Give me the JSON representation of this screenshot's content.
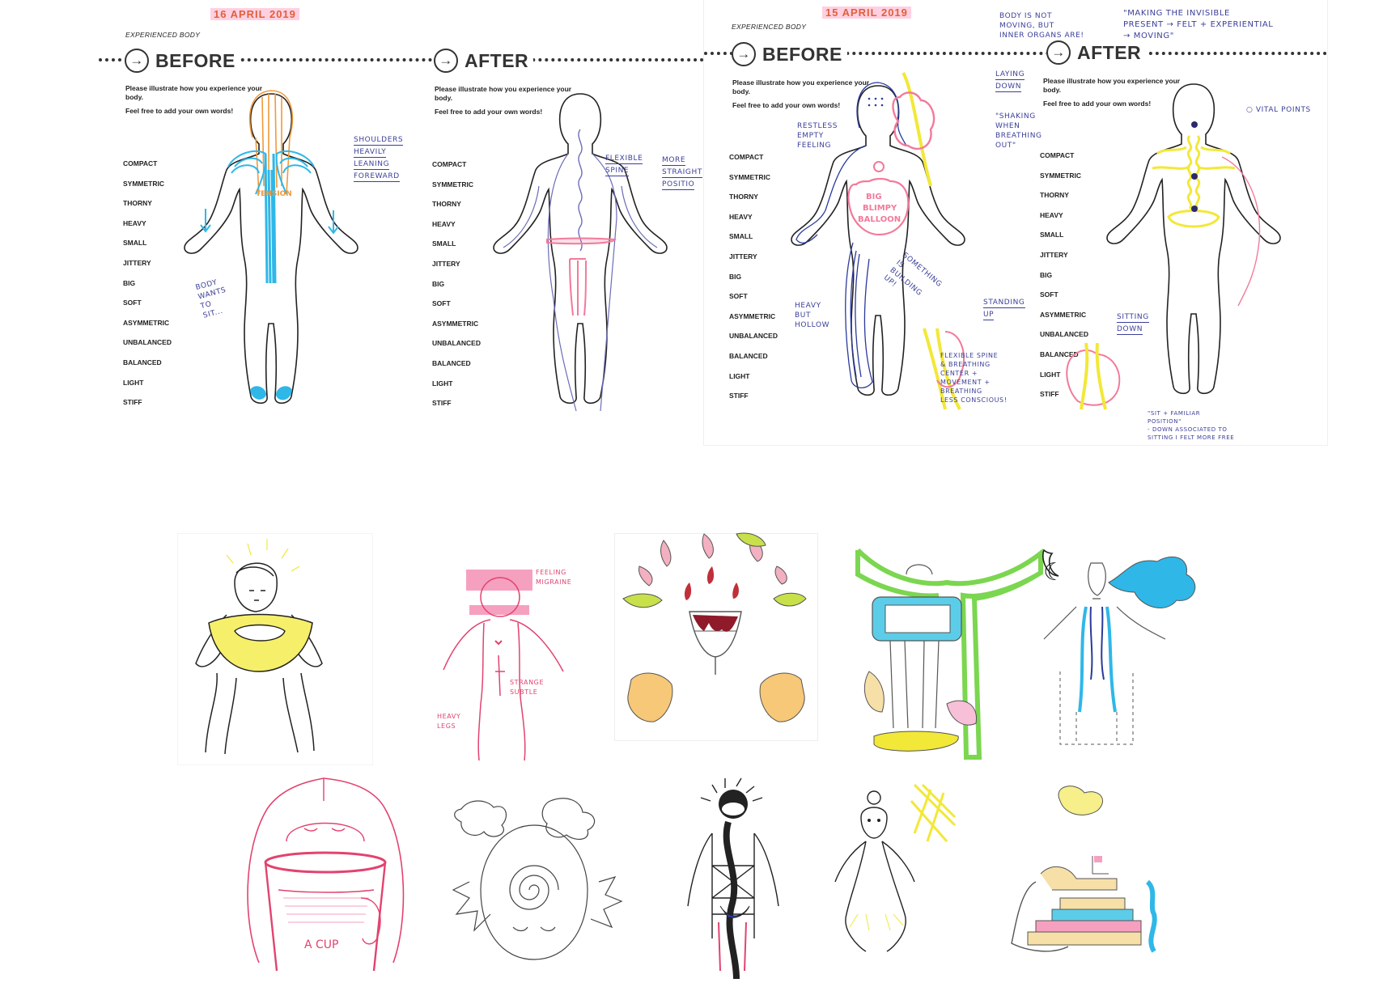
{
  "sheet_left": {
    "date": "16 APRIL 2019",
    "tag": "EXPERIENCED BODY",
    "before_label": "BEFORE",
    "after_label": "AFTER",
    "instruction_1": "Please illustrate how you experience your body.",
    "instruction_2": "Feel free to add your own words!",
    "notes": {
      "shoulders": [
        "SHOULDERS",
        "HEAVILY",
        "LEANING",
        "FOREWARD"
      ],
      "tension": "TENSION",
      "body_wants": [
        "BODY",
        "WANTS",
        "TO",
        "SIT..."
      ],
      "flexible": [
        "FLEXIBLE",
        "SPINE"
      ],
      "more": [
        "MORE",
        "STRAIGHT",
        "POSITIO"
      ]
    }
  },
  "sheet_right": {
    "date": "15 APRIL 2019",
    "tag": "EXPERIENCED BODY",
    "before_label": "BEFORE",
    "after_label": "AFTER",
    "instruction_1": "Please illustrate how you experience your body.",
    "instruction_2": "Feel free to add your own words!",
    "notes": {
      "top_left": [
        "BODY IS NOT",
        "MOVING, BUT",
        "INNER ORGANS ARE!"
      ],
      "top_right": [
        "\"MAKING THE INVISIBLE",
        "PRESENT → FELT + EXPERIENTIAL",
        "→ MOVING\""
      ],
      "laying": [
        "LAYING",
        "DOWN"
      ],
      "shaking": [
        "\"SHAKING",
        "WHEN",
        "BREATHING",
        "OUT\""
      ],
      "restless": [
        "RESTLESS",
        "EMPTY",
        "FEELING"
      ],
      "balloon": [
        "BIG",
        "BLIMPY",
        "BALLOON"
      ],
      "building": [
        "SOMETHING",
        "IS",
        "BUILDING",
        "UP!"
      ],
      "heavy": [
        "HEAVY",
        "BUT",
        "HOLLOW"
      ],
      "standing": [
        "STANDING",
        "UP"
      ],
      "flexible": [
        "FLEXIBLE",
        "SPINE",
        "&",
        "BREATHING",
        "CENTER",
        "+",
        "MOVEMENT",
        "+",
        "BREATHING",
        "LESS CONSCIOUS!"
      ],
      "vital": "○ VITAL POINTS",
      "sitting": [
        "SITTING",
        "DOWN"
      ],
      "position": [
        "\"SIT + FAMILIAR",
        "POSITION\"",
        "- DOWN ASSOCIATED TO",
        "SITTING I FELT MORE FREE"
      ]
    }
  },
  "checklist": [
    "COMPACT",
    "SYMMETRIC",
    "THORNY",
    "HEAVY",
    "SMALL",
    "JITTERY",
    "BIG",
    "SOFT",
    "ASYMMETRIC",
    "UNBALANCED",
    "BALANCED",
    "LIGHT",
    "STIFF"
  ],
  "drawings": {
    "migraine_note": [
      "FEELING",
      "MIGRAINE"
    ],
    "strange_note": [
      "STRANGE",
      "SUBTLE"
    ],
    "heavy_legs_note": [
      "HEAVY",
      "LEGS"
    ],
    "cup_text": "A CUP"
  },
  "colors": {
    "blue_ink": "#3b3f99",
    "cyan": "#2fb7e8",
    "yellow": "#f2e838",
    "pink": "#f27a9a",
    "orange": "#f09a3a",
    "green": "#7bd650"
  }
}
